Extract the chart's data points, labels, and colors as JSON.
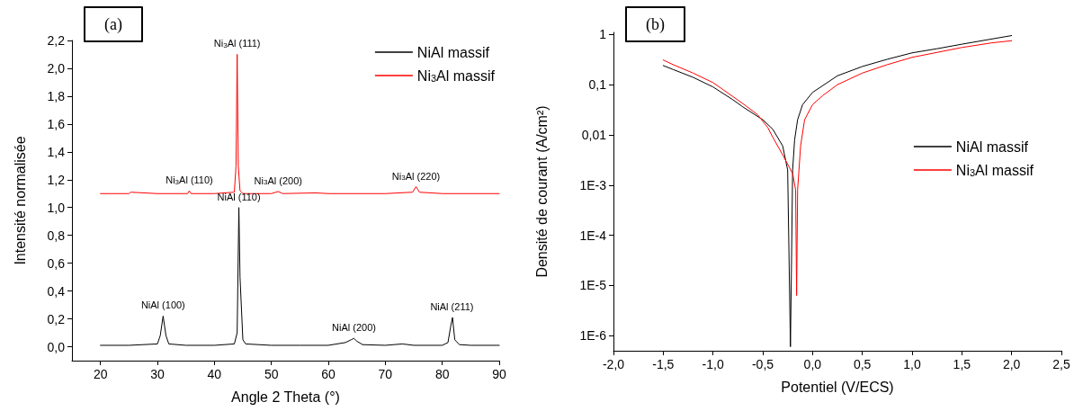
{
  "chart_data": [
    {
      "type": "line",
      "title": "(a)",
      "xlabel": "Angle 2 Theta (°)",
      "ylabel": "Intensité normalisée",
      "xlim": [
        15,
        90
      ],
      "xticks": [
        20,
        30,
        40,
        50,
        60,
        70,
        80,
        90
      ],
      "ylim": [
        -0.1,
        2.2
      ],
      "yticks": [
        {
          "value": 0,
          "label": "0,0"
        },
        {
          "value": 0.2,
          "label": "0,2"
        },
        {
          "value": 0.4,
          "label": "0,4"
        },
        {
          "value": 0.6,
          "label": "0,6"
        },
        {
          "value": 0.8,
          "label": "0,8"
        },
        {
          "value": 1,
          "label": "1,0"
        },
        {
          "value": 1.2,
          "label": "1,2"
        },
        {
          "value": 1.4,
          "label": "1,4"
        },
        {
          "value": 1.6,
          "label": "1,6"
        },
        {
          "value": 1.8,
          "label": "1,8"
        },
        {
          "value": 2,
          "label": "2,0"
        },
        {
          "value": 2.2,
          "label": "2,2"
        }
      ],
      "grid": false,
      "legend": "top right",
      "series": [
        {
          "name": "NiAl massif",
          "color": "#000000",
          "x": [
            20,
            25,
            30,
            30.5,
            31,
            31.5,
            32,
            35,
            40,
            43.5,
            44,
            44.3,
            44.5,
            45,
            45.5,
            50,
            55,
            60,
            63,
            64,
            64.5,
            65,
            66,
            70,
            73,
            75,
            80,
            81,
            81.5,
            81.8,
            82.2,
            83,
            85,
            90
          ],
          "values": [
            0.01,
            0.01,
            0.02,
            0.08,
            0.22,
            0.08,
            0.02,
            0.01,
            0.01,
            0.02,
            0.1,
            1.0,
            0.5,
            0.05,
            0.02,
            0.01,
            0.01,
            0.01,
            0.03,
            0.05,
            0.06,
            0.04,
            0.015,
            0.01,
            0.02,
            0.01,
            0.01,
            0.03,
            0.15,
            0.21,
            0.05,
            0.015,
            0.01,
            0.01
          ]
        },
        {
          "name": "Ni$_{3}$Al massif",
          "color": "#ff0000",
          "x": [
            20,
            25,
            25.3,
            30,
            35.3,
            35.6,
            35.9,
            40,
            43.5,
            43.8,
            44,
            44.2,
            44.5,
            45,
            50,
            51.2,
            52,
            57.8,
            60,
            70,
            74.8,
            75.4,
            76,
            80,
            90
          ],
          "values": [
            1.1,
            1.1,
            1.11,
            1.1,
            1.1,
            1.12,
            1.1,
            1.1,
            1.11,
            1.3,
            2.1,
            1.3,
            1.12,
            1.1,
            1.1,
            1.115,
            1.1,
            1.105,
            1.1,
            1.1,
            1.11,
            1.15,
            1.11,
            1.1,
            1.1
          ]
        }
      ],
      "annotations": [
        {
          "text": "Ni$_{3}$Al (111)",
          "x": 44,
          "y": 2.1
        },
        {
          "text": "Ni$_{3}$Al (110)",
          "x": 35.6,
          "y": 1.12
        },
        {
          "text": "Ni$_{3}$Al (200)",
          "x": 51.2,
          "y": 1.115
        },
        {
          "text": "Ni$_{3}$Al (220)",
          "x": 75.4,
          "y": 1.15
        },
        {
          "text": "NiAl (110)",
          "x": 44.3,
          "y": 1.0
        },
        {
          "text": "NiAl (100)",
          "x": 31,
          "y": 0.22
        },
        {
          "text": "NiAl (200)",
          "x": 64.5,
          "y": 0.06
        },
        {
          "text": "NiAl (211)",
          "x": 81.7,
          "y": 0.21
        }
      ]
    },
    {
      "type": "line",
      "title": "(b)",
      "xlabel": "Potentiel (V/ECS)",
      "ylabel": "Densité de courant (A/cm²)",
      "log": "y",
      "xlim": [
        -2,
        2.5
      ],
      "xticks": [
        {
          "value": -2,
          "label": "-2,0"
        },
        {
          "value": -1.5,
          "label": "-1,5"
        },
        {
          "value": -1,
          "label": "-1,0"
        },
        {
          "value": -0.5,
          "label": "-0,5"
        },
        {
          "value": 0,
          "label": "0,0"
        },
        {
          "value": 0.5,
          "label": "0,5"
        },
        {
          "value": 1,
          "label": "1,0"
        },
        {
          "value": 1.5,
          "label": "1,5"
        },
        {
          "value": 2,
          "label": "2,0"
        },
        {
          "value": 2.5,
          "label": "2,5"
        }
      ],
      "ylim": [
        5e-07,
        1.1
      ],
      "yticks": [
        {
          "value": 1e-06,
          "label": "1E-6"
        },
        {
          "value": 1e-05,
          "label": "1E-5"
        },
        {
          "value": 0.0001,
          "label": "1E-4"
        },
        {
          "value": 0.001,
          "label": "1E-3"
        },
        {
          "value": 0.01,
          "label": "0,01"
        },
        {
          "value": 0.1,
          "label": "0,1"
        },
        {
          "value": 1,
          "label": "1"
        }
      ],
      "grid": false,
      "legend": "right",
      "series": [
        {
          "name": "NiAl massif",
          "color": "#000000",
          "x": [
            -1.5,
            -1.4,
            -1.2,
            -1,
            -0.8,
            -0.7,
            -0.5,
            -0.4,
            -0.3,
            -0.25,
            -0.222,
            -0.2,
            -0.18,
            -0.15,
            -0.1,
            0,
            0.25,
            0.5,
            0.75,
            1,
            1.25,
            1.5,
            1.75,
            2
          ],
          "values": [
            0.24,
            0.2,
            0.14,
            0.09,
            0.05,
            0.036,
            0.02,
            0.013,
            0.006,
            0.002,
            6e-07,
            0.002,
            0.008,
            0.02,
            0.04,
            0.07,
            0.15,
            0.23,
            0.32,
            0.43,
            0.52,
            0.64,
            0.78,
            0.95
          ]
        },
        {
          "name": "Ni$_{3}$Al massif",
          "color": "#ff0000",
          "x": [
            -1.5,
            -1.4,
            -1.2,
            -1,
            -0.7,
            -0.55,
            -0.45,
            -0.4,
            -0.3,
            -0.2,
            -0.17,
            -0.16,
            -0.15,
            -0.12,
            -0.08,
            0,
            0.1,
            0.25,
            0.5,
            0.75,
            1,
            1.5,
            1.8,
            2
          ],
          "values": [
            0.31,
            0.25,
            0.17,
            0.11,
            0.042,
            0.025,
            0.014,
            0.009,
            0.004,
            0.0017,
            0.0008,
            6.3e-06,
            0.0008,
            0.006,
            0.02,
            0.04,
            0.06,
            0.1,
            0.17,
            0.25,
            0.35,
            0.55,
            0.68,
            0.75
          ]
        }
      ]
    }
  ]
}
